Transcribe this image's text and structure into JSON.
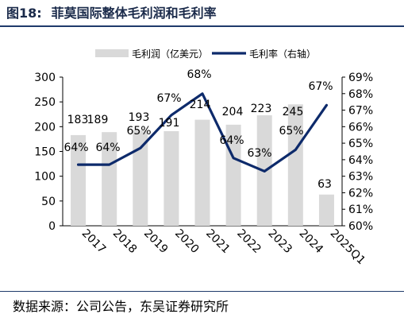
{
  "header": {
    "figure_no": "图18:",
    "title": "菲莫国际整体毛利润和毛利率"
  },
  "footer": {
    "source": "数据来源：公司公告，东吴证券研究所"
  },
  "colors": {
    "bar": "#d9d9d9",
    "line": "#0d2a6b",
    "rule": "#1f3a6b"
  },
  "chart_data": {
    "type": "bar+line",
    "categories": [
      "2017",
      "2018",
      "2019",
      "2020",
      "2021",
      "2022",
      "2023",
      "2024",
      "2025Q1"
    ],
    "series": [
      {
        "name": "毛利润（亿美元）",
        "type": "bar",
        "axis": "left",
        "values": [
          183,
          189,
          193,
          191,
          214,
          204,
          223,
          245,
          63
        ]
      },
      {
        "name": "毛利率（右轴）",
        "type": "line",
        "axis": "right",
        "values": [
          63.7,
          63.7,
          64.7,
          66.7,
          68.0,
          64.1,
          63.3,
          64.6,
          67.3
        ],
        "labels": [
          "64%",
          "64%",
          "65%",
          "67%",
          "68%",
          "64%",
          "63%",
          "65%",
          "67%"
        ]
      }
    ],
    "y_left": {
      "lim": [
        0,
        300
      ],
      "ticks": [
        0,
        50,
        100,
        150,
        200,
        250,
        300
      ]
    },
    "y_right": {
      "lim": [
        60,
        69
      ],
      "ticks": [
        "60%",
        "61%",
        "62%",
        "63%",
        "64%",
        "65%",
        "66%",
        "67%",
        "68%",
        "69%"
      ]
    },
    "legend": {
      "position": "top"
    },
    "grid": false
  }
}
